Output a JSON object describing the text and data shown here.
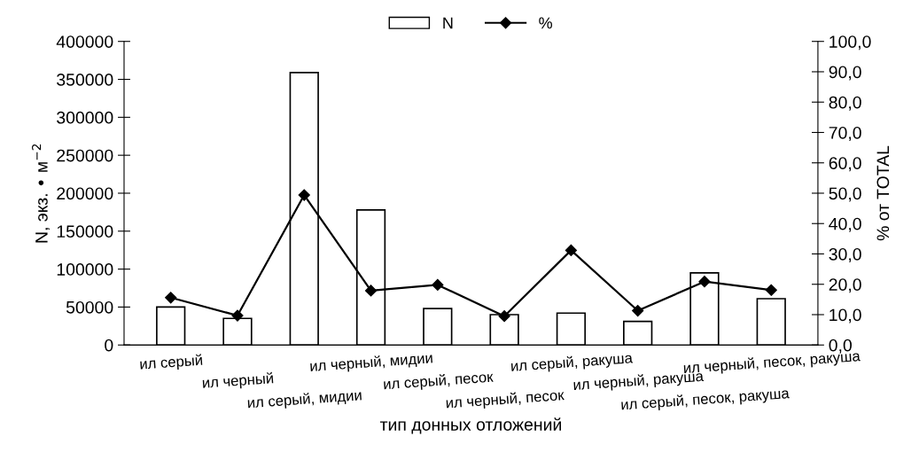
{
  "chart_data": {
    "type": "bar",
    "categories": [
      "ил серый",
      "ил черный",
      "ил серый, мидии",
      "ил черный, мидии",
      "ил серый, песок",
      "ил черный, песок",
      "ил серый, ракуша",
      "ил черный, ракуша",
      "ил серый, песок, ракуша",
      "ил черный, песок, ракуша"
    ],
    "series": [
      {
        "name": "N",
        "color": "#ffffff",
        "values": [
          50000,
          35000,
          359000,
          178000,
          48000,
          40000,
          42000,
          31000,
          95000,
          61000
        ]
      },
      {
        "name": "%",
        "type": "line",
        "axis": "y2",
        "color": "#000000",
        "values": [
          15.6,
          9.7,
          49.4,
          17.9,
          19.8,
          9.5,
          31.2,
          11.3,
          20.9,
          18.1
        ]
      }
    ],
    "xlabel": "тип донных отложений",
    "ylabel": "N, экз. • м$^{−2}$",
    "y2label": "% от TOTAL",
    "ylim": [
      0,
      400000
    ],
    "yticks": [
      0,
      50000,
      100000,
      150000,
      200000,
      250000,
      300000,
      350000,
      400000
    ],
    "y2lim": [
      0,
      100
    ],
    "y2ticks": [
      {
        "value": 0,
        "label": "0,0"
      },
      {
        "value": 10,
        "label": "10,0"
      },
      {
        "value": 20,
        "label": "20,0"
      },
      {
        "value": 30,
        "label": "30,0"
      },
      {
        "value": 40,
        "label": "40,0"
      },
      {
        "value": 50,
        "label": "50,0"
      },
      {
        "value": 60,
        "label": "60,0"
      },
      {
        "value": 70,
        "label": "70,0"
      },
      {
        "value": 80,
        "label": "80,0"
      },
      {
        "value": 90,
        "label": "90,0"
      },
      {
        "value": 100,
        "label": "100,0"
      }
    ],
    "legend": "top",
    "marker": "diamond",
    "line_style": "solid",
    "grid": false
  }
}
